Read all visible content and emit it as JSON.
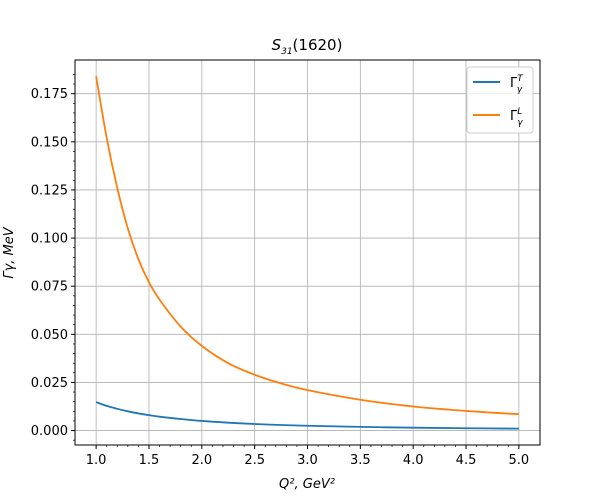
{
  "chart_data": {
    "type": "line",
    "title_main": "S",
    "title_sub": "31",
    "title_rest": "(1620)",
    "xlabel": "Q², GeV²",
    "ylabel": "Γγ, MeV",
    "xlim": [
      0.8,
      5.2
    ],
    "ylim": [
      -0.0075,
      0.1925
    ],
    "xticks": [
      1.0,
      1.5,
      2.0,
      2.5,
      3.0,
      3.5,
      4.0,
      4.5,
      5.0
    ],
    "xtick_labels": [
      "1.0",
      "1.5",
      "2.0",
      "2.5",
      "3.0",
      "3.5",
      "4.0",
      "4.5",
      "5.0"
    ],
    "yticks": [
      0.0,
      0.025,
      0.05,
      0.075,
      0.1,
      0.125,
      0.15,
      0.175
    ],
    "ytick_labels": [
      "0.000",
      "0.025",
      "0.050",
      "0.075",
      "0.100",
      "0.125",
      "0.150",
      "0.175"
    ],
    "grid": true,
    "legend_position": "top-right",
    "x": [
      1.0,
      1.1,
      1.2,
      1.3,
      1.4,
      1.5,
      1.6,
      1.8,
      2.0,
      2.25,
      2.5,
      2.75,
      3.0,
      3.5,
      4.0,
      4.5,
      5.0
    ],
    "series": [
      {
        "name": "Γγ^T",
        "legend_main": "Γ",
        "legend_sub": "γ",
        "legend_sup": "T",
        "color": "#1f77b4",
        "values": [
          0.0148,
          0.0128,
          0.0113,
          0.01,
          0.0089,
          0.008,
          0.0072,
          0.006,
          0.005,
          0.0041,
          0.0034,
          0.0029,
          0.0025,
          0.0019,
          0.0015,
          0.0012,
          0.001
        ]
      },
      {
        "name": "Γγ^L",
        "legend_main": "Γ",
        "legend_sub": "γ",
        "legend_sup": "L",
        "color": "#ff7f0e",
        "values": [
          0.184,
          0.152,
          0.126,
          0.105,
          0.089,
          0.077,
          0.068,
          0.054,
          0.044,
          0.035,
          0.029,
          0.0245,
          0.021,
          0.016,
          0.0125,
          0.0102,
          0.0085
        ]
      }
    ]
  }
}
